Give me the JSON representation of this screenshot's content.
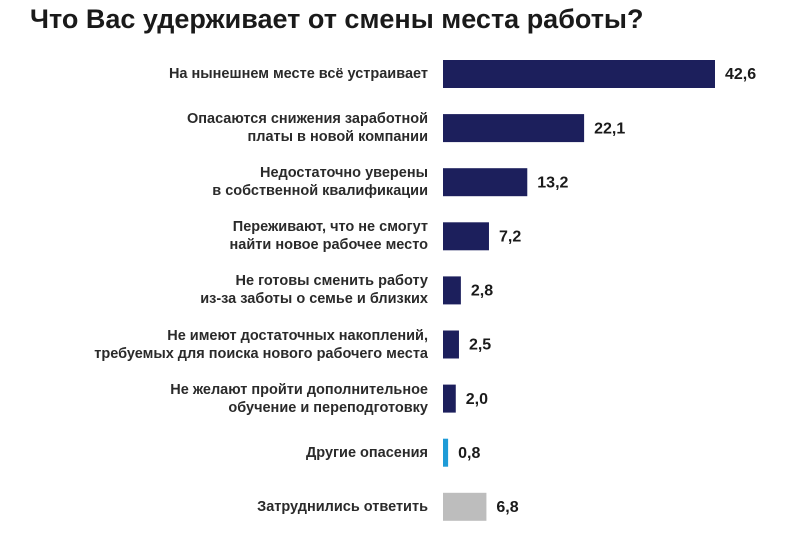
{
  "chart_data": {
    "type": "bar",
    "orientation": "horizontal",
    "title": "Что Вас удерживает от смены места работы?",
    "categories": [
      "На нынешнем месте всё устраивает",
      "Опасаются снижения заработной\nплаты в новой компании",
      "Недостаточно уверены\nв собственной квалификации",
      "Переживают, что не смогут\nнайти новое рабочее место",
      "Не готовы сменить работу\nиз-за заботы о семье и близких",
      "Не имеют достаточных накоплений,\nтребуемых для поиска нового рабочего места",
      "Не желают пройти дополнительное\nобучение и переподготовку",
      "Другие опасения",
      "Затруднились ответить"
    ],
    "values": [
      42.6,
      22.1,
      13.2,
      7.2,
      2.8,
      2.5,
      2.0,
      0.8,
      6.8
    ],
    "value_labels": [
      "42,6",
      "22,1",
      "13,2",
      "7,2",
      "2,8",
      "2,5",
      "2,0",
      "0,8",
      "6,8"
    ],
    "colors": [
      "#1c1f5c",
      "#1c1f5c",
      "#1c1f5c",
      "#1c1f5c",
      "#1c1f5c",
      "#1c1f5c",
      "#1c1f5c",
      "#1e9bd7",
      "#bdbdbd"
    ]
  }
}
